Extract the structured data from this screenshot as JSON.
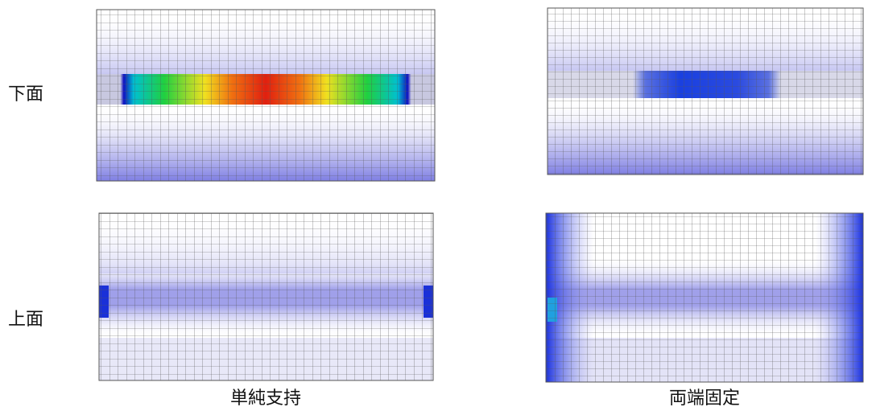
{
  "row_labels": [
    "下面",
    "上面"
  ],
  "column_labels": [
    "単純支持",
    "両端固定"
  ]
}
